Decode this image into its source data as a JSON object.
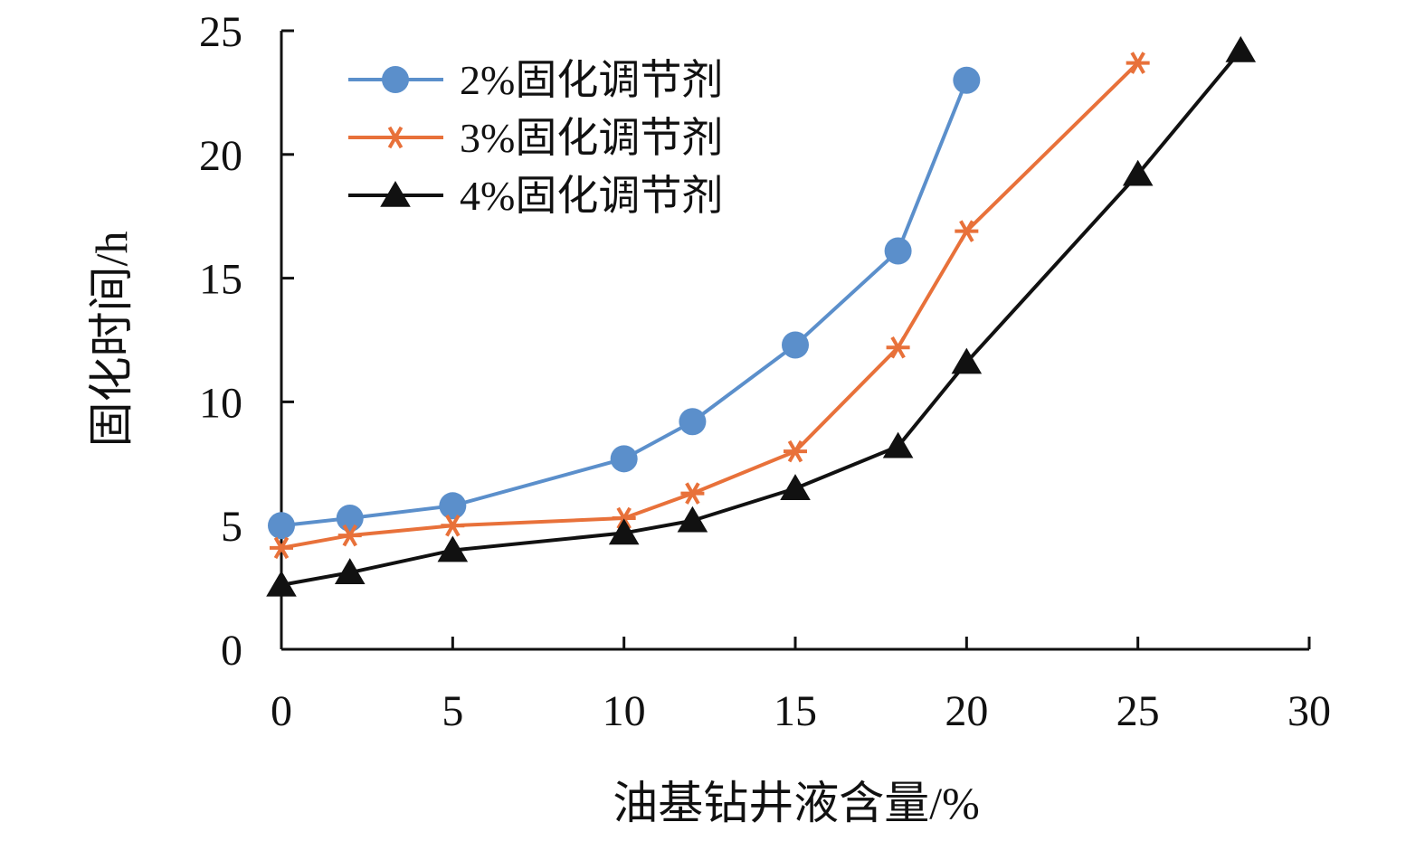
{
  "chart_data": {
    "type": "line",
    "title": "",
    "xlabel": "油基钻井液含量/%",
    "ylabel": "固化时间/h",
    "xlim": [
      0,
      30
    ],
    "ylim": [
      0,
      25
    ],
    "xticks": [
      0,
      5,
      10,
      15,
      20,
      25,
      30
    ],
    "yticks": [
      0,
      5,
      10,
      15,
      20,
      25
    ],
    "grid": false,
    "legend_position": "top-left",
    "series": [
      {
        "name": "2%固化调节剂",
        "color": "#5b8fcb",
        "marker": "circle",
        "x": [
          0,
          2,
          5,
          10,
          12,
          15,
          18,
          20
        ],
        "y": [
          5.0,
          5.3,
          5.8,
          7.7,
          9.2,
          12.3,
          16.1,
          23.0
        ]
      },
      {
        "name": "3%固化调节剂",
        "color": "#e8713a",
        "marker": "star",
        "x": [
          0,
          2,
          5,
          10,
          12,
          15,
          18,
          20,
          25
        ],
        "y": [
          4.1,
          4.6,
          5.0,
          5.3,
          6.3,
          8.0,
          12.2,
          16.9,
          23.7
        ]
      },
      {
        "name": "4%固化调节剂",
        "color": "#111111",
        "marker": "triangle",
        "x": [
          0,
          2,
          5,
          10,
          12,
          15,
          18,
          20,
          25,
          28
        ],
        "y": [
          2.6,
          3.1,
          4.0,
          4.7,
          5.2,
          6.5,
          8.2,
          11.6,
          19.2,
          24.2
        ]
      }
    ]
  }
}
